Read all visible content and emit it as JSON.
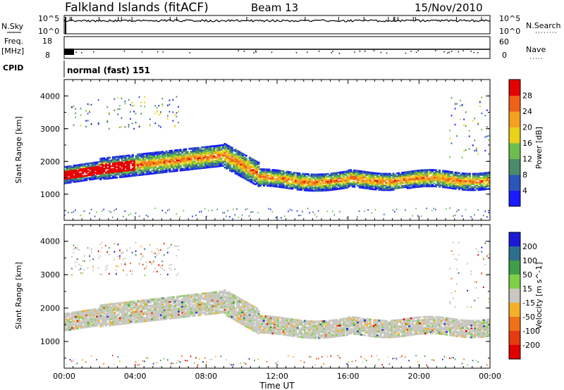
{
  "header": {
    "station": "Falkland Islands (fitACF)",
    "beam": "Beam 13",
    "date": "15/Nov/2010"
  },
  "strip_panels": {
    "nsky": {
      "left_label": "N.Sky",
      "right_label": "N.Search",
      "left_ticks": [
        "10^5",
        "10^0"
      ],
      "right_ticks": [
        "10^5",
        "10^0"
      ]
    },
    "freq": {
      "left_label_top": "Freq.",
      "left_label_unit": "[MHz]",
      "right_label": "Nave",
      "left_ticks": [
        "18",
        "8"
      ],
      "right_ticks": [
        "60",
        "0"
      ]
    },
    "cpid": {
      "label": "CPID",
      "text": "normal (fast) 151"
    }
  },
  "x_axis": {
    "label": "Time UT",
    "ticks": [
      "00:00",
      "04:00",
      "08:00",
      "12:00",
      "16:00",
      "20:00",
      "00:00"
    ]
  },
  "chart_data": [
    {
      "type": "heatmap",
      "title": "",
      "ylabel": "Slant Range [km]",
      "y_ticks": [
        "1000",
        "2000",
        "3000",
        "4000"
      ],
      "ylim": [
        200,
        4500
      ],
      "xlim_hours": [
        0,
        24
      ],
      "colorbar": {
        "label": "Power [dB]",
        "tick_labels": [
          "4",
          "8",
          "12",
          "16",
          "20",
          "24",
          "28"
        ],
        "colors": [
          "#1a1aff",
          "#2a56b8",
          "#4b8a6a",
          "#6cbf4e",
          "#e8d21a",
          "#f4a020",
          "#f06018",
          "#e60000"
        ]
      },
      "features": [
        {
          "name": "main echo band",
          "t_start": 0.2,
          "t_end": 23.9,
          "range_km": [
            1000,
            2600
          ]
        },
        {
          "name": "upper scatter",
          "t_start": 0.3,
          "t_end": 6.5,
          "range_km": [
            3000,
            4000
          ]
        },
        {
          "name": "late-day scatter",
          "t_start": 21.5,
          "t_end": 24,
          "range_km": [
            2000,
            4000
          ]
        }
      ]
    },
    {
      "type": "heatmap",
      "title": "",
      "ylabel": "Slant Range [km]",
      "y_ticks": [
        "1000",
        "2000",
        "3000",
        "4000"
      ],
      "ylim": [
        200,
        4500
      ],
      "xlim_hours": [
        0,
        24
      ],
      "colorbar": {
        "label": "Velocity [m s^-1]",
        "tick_labels": [
          "200",
          "100",
          "50",
          "15",
          "-15",
          "-50",
          "-100",
          "-200"
        ],
        "colors": [
          "#1a1ad6",
          "#2e6f8e",
          "#3f9e4a",
          "#7fd046",
          "#c8c8c0",
          "#f5b028",
          "#f07018",
          "#e63a10",
          "#e00000"
        ]
      }
    }
  ]
}
